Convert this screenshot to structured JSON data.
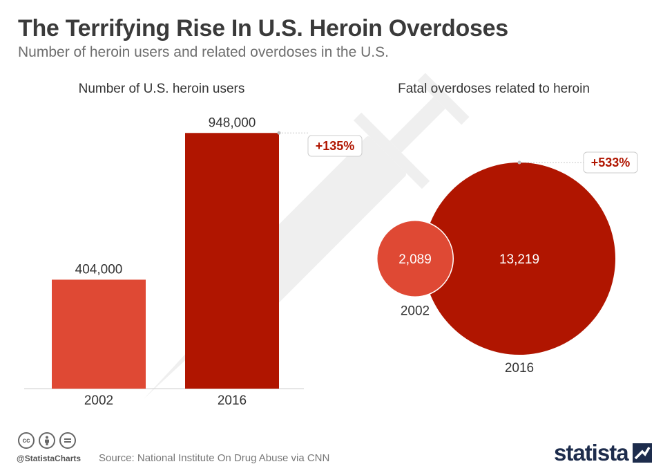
{
  "header": {
    "title": "The Terrifying Rise In U.S. Heroin Overdoses",
    "subtitle": "Number of heroin users and related overdoses in the U.S."
  },
  "chart_data": [
    {
      "type": "bar",
      "title": "Number of U.S. heroin users",
      "categories": [
        "2002",
        "2016"
      ],
      "values": [
        404000,
        948000
      ],
      "value_labels": [
        "404,000",
        "948,000"
      ],
      "colors": [
        "#df4934",
        "#b01500"
      ],
      "change_label": "+135%",
      "ylim": [
        0,
        1000000
      ]
    },
    {
      "type": "bubble",
      "title": "Fatal overdoses related to heroin",
      "categories": [
        "2002",
        "2016"
      ],
      "values": [
        2089,
        13219
      ],
      "value_labels": [
        "2,089",
        "13,219"
      ],
      "colors": [
        "#df4934",
        "#b01500"
      ],
      "change_label": "+533%"
    }
  ],
  "footer": {
    "handle": "@StatistaCharts",
    "source": "Source: National Institute On Drug Abuse via CNN",
    "brand": "statista",
    "license_icons": [
      "cc-icon",
      "by-icon",
      "nd-icon"
    ]
  }
}
